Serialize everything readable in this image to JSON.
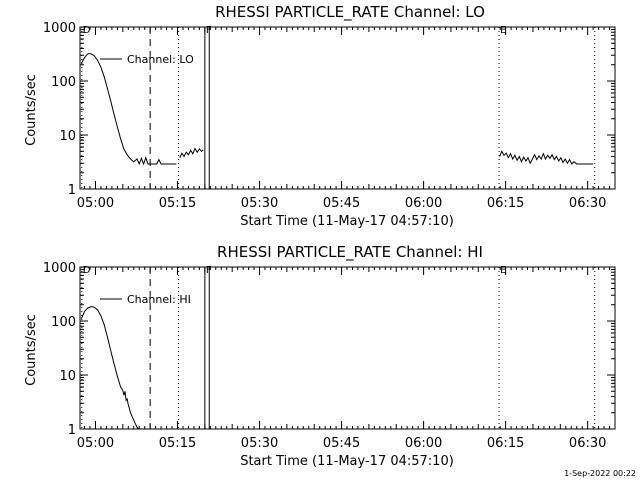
{
  "footer": {
    "date_stamp": "1-Sep-2022 00:22"
  },
  "chart_data": [
    {
      "type": "line",
      "title": "RHESSI PARTICLE_RATE Channel: LO",
      "xlabel": "Start Time (11-May-17 04:57:10)",
      "ylabel": "Counts/sec",
      "yscale": "log",
      "ylim": [
        1,
        1000
      ],
      "y_ticks": [
        "1",
        "10",
        "100",
        "1000"
      ],
      "x_ticks": [
        "05:00",
        "05:15",
        "05:30",
        "05:45",
        "06:00",
        "06:15",
        "06:30"
      ],
      "x_tick_minutes": [
        0,
        15,
        30,
        45,
        60,
        75,
        90
      ],
      "xlim_minutes": [
        -2.83,
        95
      ],
      "legend": "Channel: LO",
      "flags": [
        {
          "label": "D",
          "minute": -2.5,
          "style": "dotted"
        },
        {
          "label": "",
          "minute": 10.0,
          "style": "dashed"
        },
        {
          "label": "",
          "minute": 15.2,
          "style": "dotted"
        },
        {
          "label": "F",
          "minute": 20.0,
          "style": "solid"
        },
        {
          "label": "",
          "minute": 20.8,
          "style": "solid"
        },
        {
          "label": "E",
          "minute": 73.8,
          "style": "dotted"
        },
        {
          "label": "",
          "minute": 91.3,
          "style": "dotted"
        }
      ],
      "series": [
        {
          "segments": [
            {
              "x": [
                -2.6,
                -2.0,
                -1.4,
                -0.8,
                -0.2,
                0.4,
                1.0,
                1.6,
                2.2,
                2.8,
                3.4,
                4.0,
                4.6,
                5.2,
                5.8,
                6.4,
                7.0,
                7.6,
                8.0,
                8.4,
                8.8,
                9.2,
                9.6,
                10.0,
                10.4,
                10.8,
                11.2,
                11.6,
                12.0,
                12.4,
                12.8,
                13.2,
                13.6,
                14.0,
                14.4,
                14.8
              ],
              "y": [
                210,
                270,
                320,
                320,
                290,
                240,
                180,
                120,
                72,
                42,
                24,
                14,
                8.5,
                5.5,
                4.3,
                3.6,
                3.2,
                3.6,
                2.9,
                3.7,
                2.9,
                3.8,
                2.9,
                2.9,
                2.9,
                2.9,
                2.9,
                3.5,
                2.9,
                2.9,
                2.9,
                2.9,
                2.9,
                2.9,
                2.9,
                2.9
              ]
            },
            {
              "x": [
                15.4,
                15.8,
                16.2,
                16.6,
                17.0,
                17.4,
                17.8,
                18.2,
                18.6,
                19.0,
                19.4,
                19.7
              ],
              "y": [
                3.8,
                4.6,
                4.0,
                4.8,
                4.3,
                5.2,
                4.5,
                5.6,
                4.8,
                5.5,
                5.0,
                5.3
              ]
            },
            {
              "x": [
                73.9,
                74.3,
                74.7,
                75.1,
                75.5,
                75.9,
                76.3,
                76.7,
                77.1,
                77.5,
                77.9,
                78.3,
                78.7,
                79.1,
                79.5,
                79.9,
                80.3,
                80.7,
                81.1,
                81.5,
                81.9,
                82.3,
                82.7,
                83.1,
                83.5,
                83.9,
                84.3,
                84.7,
                85.1,
                85.5,
                85.9,
                86.3,
                86.7,
                87.1,
                87.5,
                88.0,
                89.0,
                90.0,
                91.0
              ],
              "y": [
                4.0,
                5.0,
                4.2,
                4.6,
                3.8,
                4.5,
                3.6,
                4.2,
                3.4,
                4.0,
                3.2,
                3.9,
                3.3,
                3.8,
                3.0,
                3.6,
                4.3,
                3.5,
                4.1,
                3.6,
                4.5,
                3.6,
                4.2,
                3.7,
                4.3,
                3.5,
                4.0,
                3.3,
                3.8,
                3.1,
                3.6,
                3.0,
                3.5,
                2.9,
                3.2,
                2.9,
                2.9,
                2.9,
                2.9
              ]
            }
          ]
        }
      ]
    },
    {
      "type": "line",
      "title": "RHESSI PARTICLE_RATE Channel: HI",
      "xlabel": "Start Time (11-May-17 04:57:10)",
      "ylabel": "Counts/sec",
      "yscale": "log",
      "ylim": [
        1,
        1000
      ],
      "y_ticks": [
        "1",
        "10",
        "100",
        "1000"
      ],
      "x_ticks": [
        "05:00",
        "05:15",
        "05:30",
        "05:45",
        "06:00",
        "06:15",
        "06:30"
      ],
      "x_tick_minutes": [
        0,
        15,
        30,
        45,
        60,
        75,
        90
      ],
      "xlim_minutes": [
        -2.83,
        95
      ],
      "legend": "Channel: HI",
      "flags": [
        {
          "label": "D",
          "minute": -2.5,
          "style": "dotted"
        },
        {
          "label": "",
          "minute": 10.0,
          "style": "dashed"
        },
        {
          "label": "",
          "minute": 15.2,
          "style": "dotted"
        },
        {
          "label": "F",
          "minute": 20.0,
          "style": "solid"
        },
        {
          "label": "",
          "minute": 20.8,
          "style": "solid"
        },
        {
          "label": "E",
          "minute": 73.8,
          "style": "dotted"
        },
        {
          "label": "",
          "minute": 91.3,
          "style": "dotted"
        }
      ],
      "series": [
        {
          "segments": [
            {
              "x": [
                -2.6,
                -2.0,
                -1.4,
                -0.8,
                -0.2,
                0.4,
                1.0,
                1.6,
                2.2,
                2.8,
                3.4,
                4.0,
                4.6,
                5.0,
                5.2,
                5.4,
                5.6,
                5.8,
                6.0,
                6.2,
                6.4,
                6.7,
                7.0,
                7.3,
                7.6,
                7.9
              ],
              "y": [
                110,
                150,
                175,
                185,
                180,
                160,
                125,
                85,
                50,
                28,
                16,
                9.5,
                6.0,
                5.2,
                4.2,
                5.0,
                3.4,
                3.6,
                2.8,
                2.4,
                2.0,
                1.7,
                1.45,
                1.25,
                1.08,
                1.0
              ]
            }
          ]
        }
      ]
    }
  ]
}
